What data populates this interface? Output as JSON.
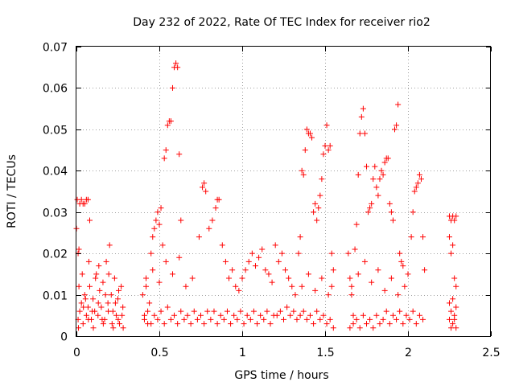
{
  "chart_data": {
    "type": "scatter",
    "title": "Day 232 of 2022, Rate Of TEC Index for receiver rio2",
    "xlabel": "GPS time / hours",
    "ylabel": "ROTI / TECUs",
    "xlim": [
      0,
      2.5
    ],
    "ylim": [
      0,
      0.07
    ],
    "xticks": [
      "0",
      "0.5",
      "1",
      "1.5",
      "2",
      "2.5"
    ],
    "yticks": [
      "0",
      "0.01",
      "0.02",
      "0.03",
      "0.04",
      "0.05",
      "0.06",
      "0.07"
    ],
    "grid": true,
    "marker": "+",
    "color": "#ff0000",
    "series": [
      {
        "points": [
          [
            0.0,
            0.026
          ],
          [
            0.005,
            0.033
          ],
          [
            0.01,
            0.02
          ],
          [
            0.015,
            0.021
          ],
          [
            0.02,
            0.032
          ],
          [
            0.03,
            0.033
          ],
          [
            0.04,
            0.032
          ],
          [
            0.05,
            0.032
          ],
          [
            0.06,
            0.033
          ],
          [
            0.07,
            0.033
          ],
          [
            0.08,
            0.028
          ],
          [
            0.01,
            0.004
          ],
          [
            0.02,
            0.006
          ],
          [
            0.03,
            0.008
          ],
          [
            0.04,
            0.003
          ],
          [
            0.05,
            0.01
          ],
          [
            0.06,
            0.005
          ],
          [
            0.07,
            0.007
          ],
          [
            0.08,
            0.012
          ],
          [
            0.09,
            0.004
          ],
          [
            0.1,
            0.009
          ],
          [
            0.11,
            0.006
          ],
          [
            0.12,
            0.015
          ],
          [
            0.13,
            0.005
          ],
          [
            0.14,
            0.011
          ],
          [
            0.15,
            0.007
          ],
          [
            0.16,
            0.013
          ],
          [
            0.17,
            0.004
          ],
          [
            0.18,
            0.018
          ],
          [
            0.19,
            0.008
          ],
          [
            0.2,
            0.022
          ],
          [
            0.21,
            0.01
          ],
          [
            0.22,
            0.006
          ],
          [
            0.23,
            0.014
          ],
          [
            0.24,
            0.005
          ],
          [
            0.25,
            0.009
          ],
          [
            0.26,
            0.003
          ],
          [
            0.27,
            0.012
          ],
          [
            0.28,
            0.007
          ],
          [
            0.015,
            0.012
          ],
          [
            0.035,
            0.015
          ],
          [
            0.055,
            0.009
          ],
          [
            0.075,
            0.018
          ],
          [
            0.095,
            0.006
          ],
          [
            0.115,
            0.014
          ],
          [
            0.135,
            0.017
          ],
          [
            0.155,
            0.004
          ],
          [
            0.175,
            0.01
          ],
          [
            0.195,
            0.015
          ],
          [
            0.215,
            0.003
          ],
          [
            0.235,
            0.008
          ],
          [
            0.255,
            0.011
          ],
          [
            0.275,
            0.005
          ],
          [
            0.012,
            0.002
          ],
          [
            0.042,
            0.007
          ],
          [
            0.072,
            0.004
          ],
          [
            0.102,
            0.002
          ],
          [
            0.132,
            0.008
          ],
          [
            0.162,
            0.003
          ],
          [
            0.192,
            0.006
          ],
          [
            0.222,
            0.002
          ],
          [
            0.252,
            0.004
          ],
          [
            0.282,
            0.002
          ],
          [
            0.4,
            0.01
          ],
          [
            0.41,
            0.005
          ],
          [
            0.42,
            0.014
          ],
          [
            0.43,
            0.003
          ],
          [
            0.44,
            0.008
          ],
          [
            0.45,
            0.02
          ],
          [
            0.46,
            0.024
          ],
          [
            0.47,
            0.026
          ],
          [
            0.48,
            0.028
          ],
          [
            0.49,
            0.03
          ],
          [
            0.5,
            0.027
          ],
          [
            0.51,
            0.031
          ],
          [
            0.52,
            0.022
          ],
          [
            0.53,
            0.043
          ],
          [
            0.54,
            0.045
          ],
          [
            0.55,
            0.051
          ],
          [
            0.56,
            0.052
          ],
          [
            0.57,
            0.052
          ],
          [
            0.58,
            0.06
          ],
          [
            0.59,
            0.065
          ],
          [
            0.6,
            0.066
          ],
          [
            0.61,
            0.065
          ],
          [
            0.62,
            0.044
          ],
          [
            0.63,
            0.028
          ],
          [
            0.41,
            0.004
          ],
          [
            0.43,
            0.006
          ],
          [
            0.45,
            0.003
          ],
          [
            0.47,
            0.005
          ],
          [
            0.49,
            0.004
          ],
          [
            0.51,
            0.006
          ],
          [
            0.53,
            0.003
          ],
          [
            0.55,
            0.007
          ],
          [
            0.57,
            0.004
          ],
          [
            0.59,
            0.005
          ],
          [
            0.61,
            0.003
          ],
          [
            0.63,
            0.006
          ],
          [
            0.65,
            0.004
          ],
          [
            0.67,
            0.005
          ],
          [
            0.69,
            0.003
          ],
          [
            0.71,
            0.006
          ],
          [
            0.73,
            0.004
          ],
          [
            0.75,
            0.005
          ],
          [
            0.77,
            0.003
          ],
          [
            0.79,
            0.006
          ],
          [
            0.42,
            0.012
          ],
          [
            0.46,
            0.016
          ],
          [
            0.5,
            0.013
          ],
          [
            0.54,
            0.018
          ],
          [
            0.58,
            0.015
          ],
          [
            0.62,
            0.019
          ],
          [
            0.66,
            0.012
          ],
          [
            0.7,
            0.014
          ],
          [
            0.74,
            0.024
          ],
          [
            0.76,
            0.036
          ],
          [
            0.77,
            0.037
          ],
          [
            0.78,
            0.035
          ],
          [
            0.8,
            0.026
          ],
          [
            0.82,
            0.028
          ],
          [
            0.84,
            0.031
          ],
          [
            0.85,
            0.033
          ],
          [
            0.86,
            0.033
          ],
          [
            0.88,
            0.022
          ],
          [
            0.9,
            0.018
          ],
          [
            0.92,
            0.014
          ],
          [
            0.94,
            0.016
          ],
          [
            0.96,
            0.012
          ],
          [
            0.98,
            0.011
          ],
          [
            0.81,
            0.004
          ],
          [
            0.83,
            0.006
          ],
          [
            0.85,
            0.003
          ],
          [
            0.87,
            0.005
          ],
          [
            0.89,
            0.004
          ],
          [
            0.91,
            0.006
          ],
          [
            0.93,
            0.003
          ],
          [
            0.95,
            0.005
          ],
          [
            0.97,
            0.004
          ],
          [
            0.99,
            0.006
          ],
          [
            1.01,
            0.003
          ],
          [
            1.03,
            0.005
          ],
          [
            1.05,
            0.004
          ],
          [
            1.07,
            0.006
          ],
          [
            1.09,
            0.003
          ],
          [
            1.11,
            0.005
          ],
          [
            1.13,
            0.004
          ],
          [
            1.15,
            0.006
          ],
          [
            1.17,
            0.003
          ],
          [
            1.19,
            0.005
          ],
          [
            1.0,
            0.014
          ],
          [
            1.02,
            0.016
          ],
          [
            1.04,
            0.018
          ],
          [
            1.06,
            0.02
          ],
          [
            1.08,
            0.017
          ],
          [
            1.1,
            0.019
          ],
          [
            1.12,
            0.021
          ],
          [
            1.14,
            0.016
          ],
          [
            1.16,
            0.015
          ],
          [
            1.18,
            0.013
          ],
          [
            1.2,
            0.022
          ],
          [
            1.22,
            0.018
          ],
          [
            1.24,
            0.02
          ],
          [
            1.26,
            0.016
          ],
          [
            1.28,
            0.014
          ],
          [
            1.3,
            0.012
          ],
          [
            1.21,
            0.005
          ],
          [
            1.23,
            0.006
          ],
          [
            1.25,
            0.004
          ],
          [
            1.27,
            0.007
          ],
          [
            1.29,
            0.005
          ],
          [
            1.31,
            0.006
          ],
          [
            1.33,
            0.004
          ],
          [
            1.35,
            0.005
          ],
          [
            1.37,
            0.006
          ],
          [
            1.39,
            0.004
          ],
          [
            1.41,
            0.005
          ],
          [
            1.43,
            0.003
          ],
          [
            1.45,
            0.006
          ],
          [
            1.47,
            0.004
          ],
          [
            1.49,
            0.005
          ],
          [
            1.51,
            0.003
          ],
          [
            1.53,
            0.004
          ],
          [
            1.55,
            0.002
          ],
          [
            1.34,
            0.02
          ],
          [
            1.35,
            0.024
          ],
          [
            1.36,
            0.04
          ],
          [
            1.37,
            0.039
          ],
          [
            1.38,
            0.045
          ],
          [
            1.39,
            0.05
          ],
          [
            1.4,
            0.049
          ],
          [
            1.41,
            0.049
          ],
          [
            1.42,
            0.048
          ],
          [
            1.43,
            0.03
          ],
          [
            1.44,
            0.032
          ],
          [
            1.45,
            0.028
          ],
          [
            1.46,
            0.031
          ],
          [
            1.47,
            0.034
          ],
          [
            1.48,
            0.038
          ],
          [
            1.49,
            0.044
          ],
          [
            1.5,
            0.046
          ],
          [
            1.51,
            0.051
          ],
          [
            1.52,
            0.045
          ],
          [
            1.53,
            0.046
          ],
          [
            1.54,
            0.02
          ],
          [
            1.55,
            0.016
          ],
          [
            1.32,
            0.01
          ],
          [
            1.36,
            0.012
          ],
          [
            1.4,
            0.015
          ],
          [
            1.44,
            0.011
          ],
          [
            1.48,
            0.014
          ],
          [
            1.52,
            0.01
          ],
          [
            1.54,
            0.012
          ],
          [
            1.64,
            0.02
          ],
          [
            1.65,
            0.014
          ],
          [
            1.66,
            0.01
          ],
          [
            1.67,
            0.005
          ],
          [
            1.68,
            0.021
          ],
          [
            1.69,
            0.027
          ],
          [
            1.7,
            0.039
          ],
          [
            1.71,
            0.049
          ],
          [
            1.72,
            0.053
          ],
          [
            1.73,
            0.055
          ],
          [
            1.74,
            0.049
          ],
          [
            1.75,
            0.041
          ],
          [
            1.76,
            0.03
          ],
          [
            1.77,
            0.031
          ],
          [
            1.78,
            0.032
          ],
          [
            1.79,
            0.038
          ],
          [
            1.8,
            0.041
          ],
          [
            1.81,
            0.036
          ],
          [
            1.82,
            0.034
          ],
          [
            1.83,
            0.038
          ],
          [
            1.84,
            0.04
          ],
          [
            1.85,
            0.039
          ],
          [
            1.86,
            0.042
          ],
          [
            1.87,
            0.043
          ],
          [
            1.88,
            0.043
          ],
          [
            1.89,
            0.032
          ],
          [
            1.9,
            0.03
          ],
          [
            1.91,
            0.028
          ],
          [
            1.92,
            0.05
          ],
          [
            1.93,
            0.051
          ],
          [
            1.94,
            0.056
          ],
          [
            1.95,
            0.02
          ],
          [
            1.96,
            0.018
          ],
          [
            1.97,
            0.017
          ],
          [
            1.65,
            0.002
          ],
          [
            1.67,
            0.003
          ],
          [
            1.69,
            0.004
          ],
          [
            1.71,
            0.002
          ],
          [
            1.73,
            0.005
          ],
          [
            1.75,
            0.003
          ],
          [
            1.77,
            0.004
          ],
          [
            1.79,
            0.002
          ],
          [
            1.81,
            0.005
          ],
          [
            1.83,
            0.003
          ],
          [
            1.85,
            0.004
          ],
          [
            1.87,
            0.006
          ],
          [
            1.89,
            0.003
          ],
          [
            1.91,
            0.005
          ],
          [
            1.93,
            0.004
          ],
          [
            1.95,
            0.006
          ],
          [
            1.97,
            0.003
          ],
          [
            1.99,
            0.005
          ],
          [
            2.01,
            0.004
          ],
          [
            2.03,
            0.006
          ],
          [
            2.05,
            0.003
          ],
          [
            2.07,
            0.005
          ],
          [
            2.09,
            0.004
          ],
          [
            1.66,
            0.012
          ],
          [
            1.7,
            0.015
          ],
          [
            1.74,
            0.018
          ],
          [
            1.78,
            0.013
          ],
          [
            1.82,
            0.016
          ],
          [
            1.86,
            0.011
          ],
          [
            1.9,
            0.014
          ],
          [
            1.94,
            0.01
          ],
          [
            1.98,
            0.012
          ],
          [
            2.0,
            0.015
          ],
          [
            2.02,
            0.024
          ],
          [
            2.03,
            0.03
          ],
          [
            2.04,
            0.035
          ],
          [
            2.05,
            0.036
          ],
          [
            2.06,
            0.037
          ],
          [
            2.07,
            0.039
          ],
          [
            2.08,
            0.038
          ],
          [
            2.09,
            0.024
          ],
          [
            2.1,
            0.016
          ],
          [
            2.25,
            0.029
          ],
          [
            2.26,
            0.028
          ],
          [
            2.27,
            0.029
          ],
          [
            2.28,
            0.028
          ],
          [
            2.29,
            0.029
          ],
          [
            2.25,
            0.024
          ],
          [
            2.26,
            0.02
          ],
          [
            2.27,
            0.022
          ],
          [
            2.28,
            0.014
          ],
          [
            2.29,
            0.012
          ],
          [
            2.25,
            0.004
          ],
          [
            2.26,
            0.006
          ],
          [
            2.27,
            0.003
          ],
          [
            2.28,
            0.005
          ],
          [
            2.29,
            0.007
          ],
          [
            2.25,
            0.008
          ],
          [
            2.26,
            0.002
          ],
          [
            2.27,
            0.009
          ],
          [
            2.28,
            0.004
          ],
          [
            2.29,
            0.002
          ]
        ]
      }
    ]
  }
}
